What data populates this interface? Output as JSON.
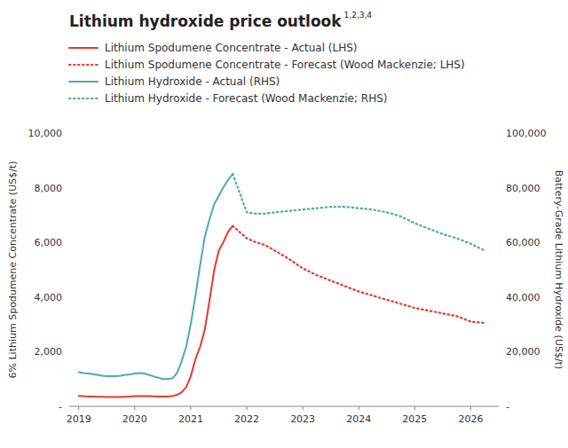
{
  "chart_data": {
    "type": "line",
    "title": "Lithium hydroxide price outlook",
    "annotations": [
      "1,2,3,4"
    ],
    "ylabel": "6% Lithium Spodumene Concentrate (US$/t)",
    "y2label": "Battery-Grade Lithium Hydroxide (US$/t)",
    "xlim": [
      2018.83,
      2026.5
    ],
    "xticks": [
      2019,
      2020,
      2021,
      2022,
      2023,
      2024,
      2025,
      2026
    ],
    "ylim": [
      0,
      10000
    ],
    "yticks": [
      {
        "value": 0,
        "label": "-"
      },
      {
        "value": 2000,
        "label": "2,000"
      },
      {
        "value": 4000,
        "label": "4,000"
      },
      {
        "value": 6000,
        "label": "6,000"
      },
      {
        "value": 8000,
        "label": "8,000"
      },
      {
        "value": 10000,
        "label": "10,000"
      }
    ],
    "y2lim": [
      0,
      100000
    ],
    "y2ticks": [
      {
        "value": 0,
        "label": "-"
      },
      {
        "value": 20000,
        "label": "20,000"
      },
      {
        "value": 40000,
        "label": "40,000"
      },
      {
        "value": 60000,
        "label": "60,000"
      },
      {
        "value": 80000,
        "label": "80,000"
      },
      {
        "value": 100000,
        "label": "100,000"
      }
    ],
    "grid": false,
    "legend": "top",
    "series": [
      {
        "name": "Lithium Spodumene Concentrate - Actual (LHS)",
        "color": "#e8392a",
        "line_style": "solid",
        "x": [
          2019.0,
          2019.08,
          2019.17,
          2019.25,
          2019.33,
          2019.42,
          2019.5,
          2019.58,
          2019.67,
          2019.75,
          2019.83,
          2019.92,
          2020.0,
          2020.08,
          2020.17,
          2020.25,
          2020.33,
          2020.42,
          2020.5,
          2020.58,
          2020.67,
          2020.75,
          2020.83,
          2020.92,
          2021.0,
          2021.08,
          2021.17,
          2021.25,
          2021.33,
          2021.42,
          2021.5,
          2021.58,
          2021.67,
          2021.75
        ],
        "values": [
          380,
          370,
          360,
          355,
          350,
          345,
          340,
          340,
          340,
          340,
          350,
          360,
          370,
          370,
          370,
          370,
          365,
          360,
          360,
          360,
          370,
          420,
          500,
          700,
          1100,
          1700,
          2200,
          2800,
          3800,
          5000,
          5700,
          6000,
          6400,
          6600
        ]
      },
      {
        "name": "Lithium Spodumene Concentrate - Forecast (Wood Mackenzie; LHS)",
        "color": "#e8392a",
        "line_style": "dotted",
        "x": [
          2021.75,
          2022.0,
          2022.17,
          2022.33,
          2022.5,
          2022.75,
          2023.0,
          2023.25,
          2023.5,
          2023.75,
          2024.0,
          2024.25,
          2024.5,
          2024.75,
          2025.0,
          2025.25,
          2025.5,
          2025.75,
          2026.0,
          2026.25
        ],
        "values": [
          6600,
          6150,
          6000,
          5900,
          5700,
          5400,
          5050,
          4800,
          4600,
          4400,
          4200,
          4050,
          3900,
          3750,
          3600,
          3500,
          3400,
          3300,
          3100,
          3050
        ]
      },
      {
        "name": "Lithium Hydroxide - Actual (RHS)",
        "color": "#4aacad",
        "line_style": "solid",
        "axis": "y2",
        "x": [
          2019.0,
          2019.08,
          2019.17,
          2019.25,
          2019.33,
          2019.42,
          2019.5,
          2019.58,
          2019.67,
          2019.75,
          2019.83,
          2019.92,
          2020.0,
          2020.08,
          2020.17,
          2020.25,
          2020.33,
          2020.42,
          2020.5,
          2020.58,
          2020.67,
          2020.75,
          2020.83,
          2020.92,
          2021.0,
          2021.08,
          2021.17,
          2021.25,
          2021.33,
          2021.42,
          2021.5,
          2021.58,
          2021.67,
          2021.75
        ],
        "values": [
          12500,
          12200,
          12000,
          11800,
          11500,
          11200,
          11000,
          11000,
          11000,
          11200,
          11500,
          11700,
          12000,
          12200,
          12000,
          11500,
          11000,
          10500,
          10000,
          10000,
          10200,
          12000,
          16000,
          22000,
          30000,
          40000,
          52000,
          62000,
          68000,
          74000,
          77000,
          80000,
          83000,
          85000
        ]
      },
      {
        "name": "Lithium Hydroxide - Forecast (Wood Mackenzie; RHS)",
        "color": "#4aacad",
        "line_style": "dotted",
        "axis": "y2",
        "x": [
          2021.75,
          2022.0,
          2022.17,
          2022.33,
          2022.5,
          2022.75,
          2023.0,
          2023.25,
          2023.5,
          2023.75,
          2024.0,
          2024.25,
          2024.5,
          2024.75,
          2025.0,
          2025.25,
          2025.5,
          2025.75,
          2026.0,
          2026.25
        ],
        "values": [
          85000,
          71000,
          70500,
          70500,
          71000,
          71500,
          72000,
          72500,
          73000,
          73000,
          72500,
          72000,
          71000,
          69500,
          67000,
          65000,
          63000,
          61500,
          59500,
          57000
        ]
      }
    ]
  }
}
